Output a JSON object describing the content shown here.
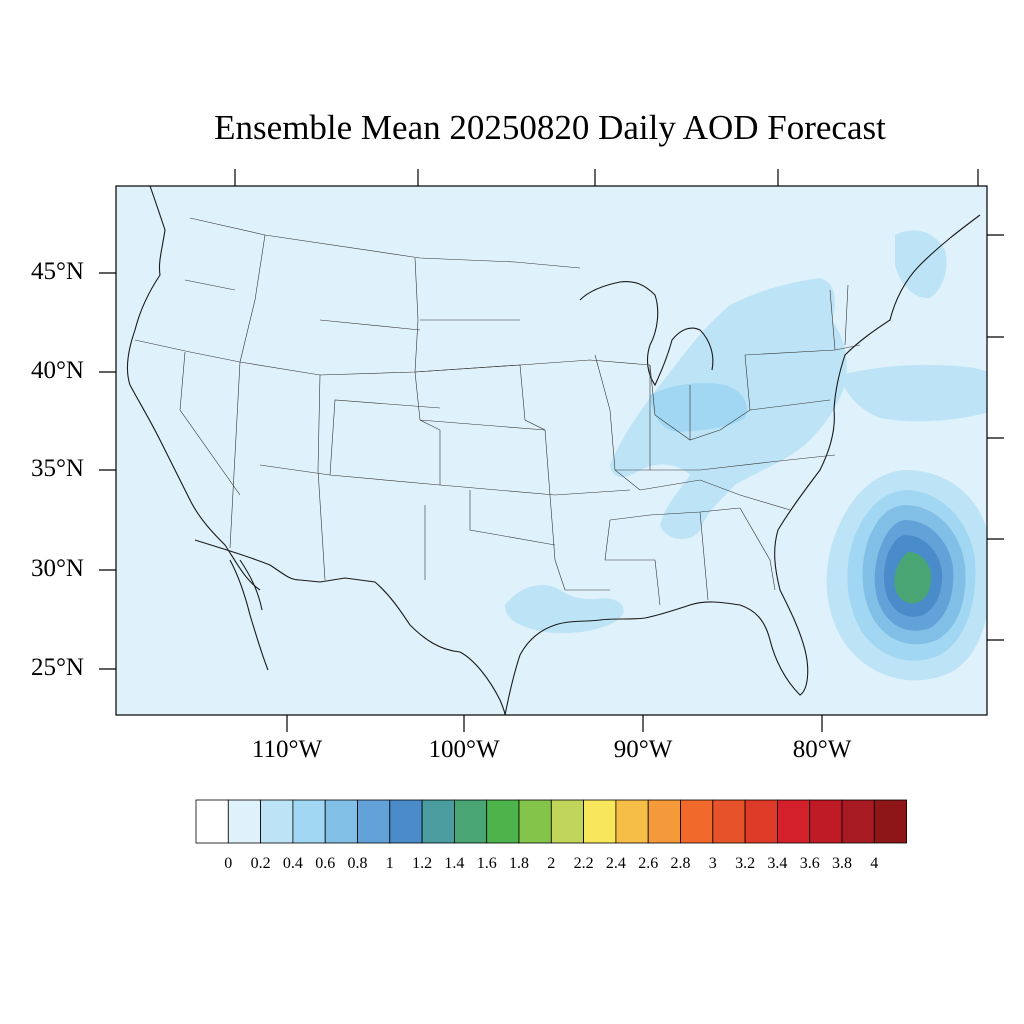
{
  "title": "Ensemble Mean 20250820 Daily AOD Forecast",
  "lat_labels": [
    "45°N",
    "40°N",
    "35°N",
    "30°N",
    "25°N"
  ],
  "lon_labels": [
    "110°W",
    "100°W",
    "90°W",
    "80°W"
  ],
  "colorbar": {
    "labels": [
      "0",
      "0.2",
      "0.4",
      "0.6",
      "0.8",
      "1",
      "1.2",
      "1.4",
      "1.6",
      "1.8",
      "2",
      "2.2",
      "2.4",
      "2.6",
      "2.8",
      "3",
      "3.2",
      "3.4",
      "3.6",
      "3.8",
      "4"
    ],
    "colors": [
      "#ffffff",
      "#dff1fa",
      "#bde4f6",
      "#a1d7f2",
      "#82bfe6",
      "#63a2d9",
      "#4a8cca",
      "#4a9c9e",
      "#49a574",
      "#4cb44a",
      "#85c44b",
      "#c1d55a",
      "#f8e65b",
      "#f6bd47",
      "#f59a3b",
      "#f16a2b",
      "#e65229",
      "#de3a28",
      "#d3202a",
      "#bf1b26",
      "#a81a22",
      "#8f1618"
    ]
  },
  "map_colors": {
    "background": "#dff1fa",
    "level_04": "#bde4f6",
    "level_06": "#a1d7f2",
    "level_08": "#82bfe6",
    "level_10": "#63a2d9",
    "level_12": "#4a8cca",
    "level_14": "#49a574"
  }
}
